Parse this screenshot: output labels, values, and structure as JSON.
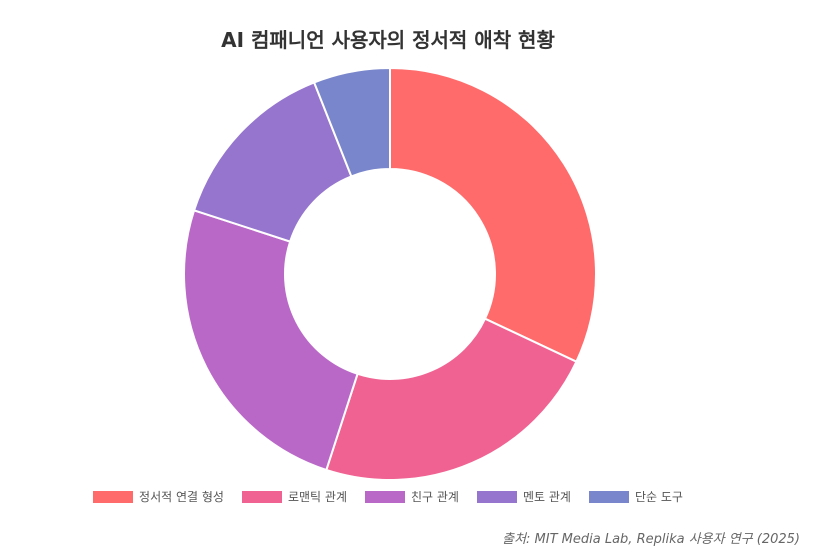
{
  "chart_data": {
    "type": "pie",
    "variant": "donut",
    "title": "AI 컴패니언 사용자의 정서적 애착 현황",
    "categories": [
      "정서적 연결 형성",
      "로맨틱 관계",
      "친구 관계",
      "멘토 관계",
      "단순 도구"
    ],
    "values": [
      32,
      23,
      25,
      14,
      6
    ],
    "colors": [
      "#ff6b6b",
      "#f06292",
      "#ba68c8",
      "#9575cd",
      "#7986cb"
    ],
    "legend": "bottom",
    "source": "출처: MIT Media Lab, Replika 사용자 연구 (2025)"
  }
}
